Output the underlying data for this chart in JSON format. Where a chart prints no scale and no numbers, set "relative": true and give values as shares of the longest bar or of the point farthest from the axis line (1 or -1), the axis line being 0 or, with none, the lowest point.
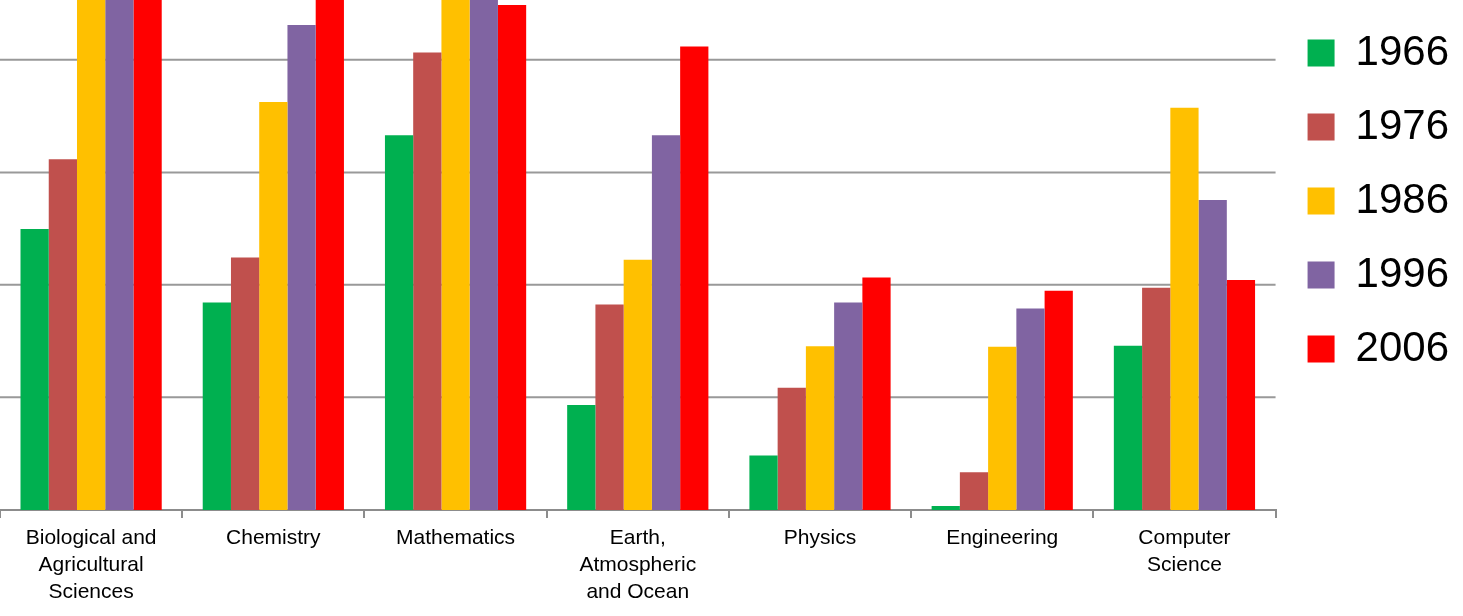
{
  "chart_data": {
    "type": "bar",
    "relative": true,
    "categories": [
      "Biological and Agricultural Sciences",
      "Chemistry",
      "Mathematics",
      "Earth, Atmospheric and Ocean",
      "Physics",
      "Engineering",
      "Computer Science"
    ],
    "series": [
      {
        "name": "1966",
        "color": "#00b050",
        "values": [
          0.551,
          0.407,
          0.735,
          0.206,
          0.107,
          0.008,
          0.322
        ]
      },
      {
        "name": "1976",
        "color": "#c0504d",
        "values": [
          0.688,
          0.495,
          0.897,
          0.403,
          0.24,
          0.074,
          0.436
        ]
      },
      {
        "name": "1986",
        "color": "#ffc000",
        "values": [
          1,
          0.8,
          1,
          0.491,
          0.321,
          0.32,
          0.789
        ]
      },
      {
        "name": "1996",
        "color": "#8064a2",
        "values": [
          1,
          0.951,
          1,
          0.735,
          0.407,
          0.395,
          0.608
        ]
      },
      {
        "name": "2006",
        "color": "#ff0000",
        "values": [
          1,
          1,
          0.99,
          0.909,
          0.456,
          0.43,
          0.451
        ]
      }
    ],
    "ref_lines": [
      {
        "axis": "y",
        "value": 0.221,
        "color": "#999999"
      },
      {
        "axis": "y",
        "value": 0.442,
        "color": "#999999"
      },
      {
        "axis": "y",
        "value": 0.662,
        "color": "#999999"
      },
      {
        "axis": "y",
        "value": 0.883,
        "color": "#999999"
      }
    ],
    "legend": "top right"
  }
}
